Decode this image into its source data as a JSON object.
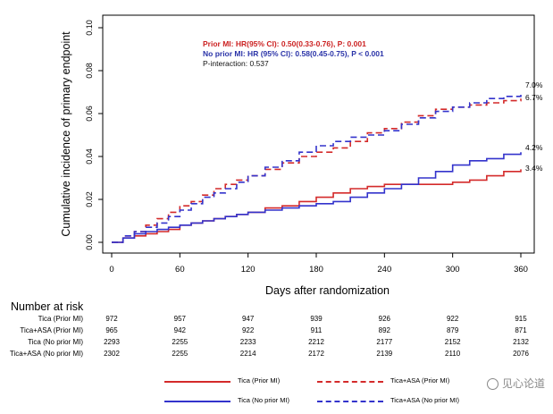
{
  "chart_data": {
    "type": "line",
    "subtype": "kaplan-meier",
    "xlabel": "Days after randomization",
    "ylabel": "Cumulative incidence of primary endpoint",
    "xlim": [
      0,
      365
    ],
    "ylim": [
      0,
      0.1
    ],
    "x_ticks": [
      0,
      60,
      120,
      180,
      240,
      300,
      360
    ],
    "x_tick_labels": [
      "0",
      "60",
      "120",
      "180",
      "240",
      "300",
      "360"
    ],
    "y_ticks": [
      0,
      0.02,
      0.04,
      0.06,
      0.08,
      0.1
    ],
    "y_tick_labels": [
      "0.00",
      "0.02",
      "0.04",
      "0.06",
      "0.08",
      "0.10"
    ],
    "annotations": {
      "prior_mi": "Prior MI: HR(95% CI): 0.50(0.33-0.76), P: 0.001",
      "no_prior_mi": "No prior MI: HR (95% CI): 0.58(0.45-0.75), P < 0.001",
      "p_interaction": "P-interaction: 0.537"
    },
    "colors": {
      "red": "#d42a2a",
      "blue": "#3333cc"
    },
    "series": [
      {
        "name": "Tica (Prior MI)",
        "color": "#d42a2a",
        "dash": false,
        "end_label": "3.4%",
        "x": [
          0,
          10,
          20,
          30,
          40,
          50,
          60,
          70,
          80,
          90,
          100,
          110,
          120,
          135,
          150,
          165,
          180,
          195,
          210,
          225,
          240,
          255,
          270,
          285,
          300,
          315,
          330,
          345,
          360
        ],
        "y": [
          0,
          0.002,
          0.003,
          0.004,
          0.005,
          0.006,
          0.008,
          0.009,
          0.01,
          0.011,
          0.012,
          0.013,
          0.014,
          0.016,
          0.017,
          0.019,
          0.021,
          0.023,
          0.025,
          0.026,
          0.027,
          0.027,
          0.027,
          0.027,
          0.028,
          0.029,
          0.031,
          0.033,
          0.034
        ]
      },
      {
        "name": "Tica+ASA (Prior MI)",
        "color": "#d42a2a",
        "dash": true,
        "end_label": "6.7%",
        "x": [
          0,
          10,
          20,
          30,
          40,
          50,
          60,
          70,
          80,
          90,
          100,
          110,
          120,
          135,
          150,
          165,
          180,
          195,
          210,
          225,
          240,
          255,
          270,
          285,
          300,
          315,
          330,
          345,
          360
        ],
        "y": [
          0,
          0.003,
          0.005,
          0.008,
          0.011,
          0.014,
          0.017,
          0.019,
          0.022,
          0.025,
          0.027,
          0.029,
          0.031,
          0.034,
          0.037,
          0.04,
          0.042,
          0.044,
          0.047,
          0.051,
          0.053,
          0.056,
          0.059,
          0.062,
          0.063,
          0.064,
          0.065,
          0.066,
          0.067
        ]
      },
      {
        "name": "Tica (No prior MI)",
        "color": "#3333cc",
        "dash": false,
        "end_label": "4.2%",
        "x": [
          0,
          10,
          20,
          30,
          40,
          50,
          60,
          70,
          80,
          90,
          100,
          110,
          120,
          135,
          150,
          165,
          180,
          195,
          210,
          225,
          240,
          255,
          270,
          285,
          300,
          315,
          330,
          345,
          360
        ],
        "y": [
          0,
          0.002,
          0.004,
          0.005,
          0.006,
          0.007,
          0.008,
          0.009,
          0.01,
          0.011,
          0.012,
          0.013,
          0.014,
          0.015,
          0.016,
          0.017,
          0.018,
          0.019,
          0.021,
          0.023,
          0.025,
          0.027,
          0.03,
          0.033,
          0.036,
          0.038,
          0.039,
          0.041,
          0.042
        ]
      },
      {
        "name": "Tica+ASA (No prior MI)",
        "color": "#3333cc",
        "dash": true,
        "end_label": "7.0%",
        "x": [
          0,
          10,
          20,
          30,
          40,
          50,
          60,
          70,
          80,
          90,
          100,
          110,
          120,
          135,
          150,
          165,
          180,
          195,
          210,
          225,
          240,
          255,
          270,
          285,
          300,
          315,
          330,
          345,
          360
        ],
        "y": [
          0,
          0.003,
          0.005,
          0.007,
          0.009,
          0.012,
          0.015,
          0.018,
          0.021,
          0.023,
          0.025,
          0.028,
          0.031,
          0.035,
          0.038,
          0.042,
          0.045,
          0.047,
          0.049,
          0.05,
          0.052,
          0.055,
          0.058,
          0.061,
          0.063,
          0.065,
          0.067,
          0.068,
          0.07
        ]
      }
    ]
  },
  "risk_table": {
    "title": "Number at risk",
    "rows": [
      {
        "label": "Tica (Prior MI)",
        "values": [
          "972",
          "957",
          "947",
          "939",
          "926",
          "922",
          "915"
        ]
      },
      {
        "label": "Tica+ASA (Prior MI)",
        "values": [
          "965",
          "942",
          "922",
          "911",
          "892",
          "879",
          "871"
        ]
      },
      {
        "label": "Tica (No prior MI)",
        "values": [
          "2293",
          "2255",
          "2233",
          "2212",
          "2177",
          "2152",
          "2132"
        ]
      },
      {
        "label": "Tica+ASA (No prior MI)",
        "values": [
          "2302",
          "2255",
          "2214",
          "2172",
          "2139",
          "2110",
          "2076"
        ]
      }
    ]
  },
  "legend": {
    "items": [
      {
        "label": "Tica (Prior MI)",
        "color": "#d42a2a",
        "dash": false
      },
      {
        "label": "Tica+ASA (Prior MI)",
        "color": "#d42a2a",
        "dash": true
      },
      {
        "label": "Tica (No prior MI)",
        "color": "#3333cc",
        "dash": false
      },
      {
        "label": "Tica+ASA (No prior MI)",
        "color": "#3333cc",
        "dash": true
      }
    ]
  },
  "watermark": {
    "text": "见心论道",
    "icon": "wechat-icon"
  }
}
